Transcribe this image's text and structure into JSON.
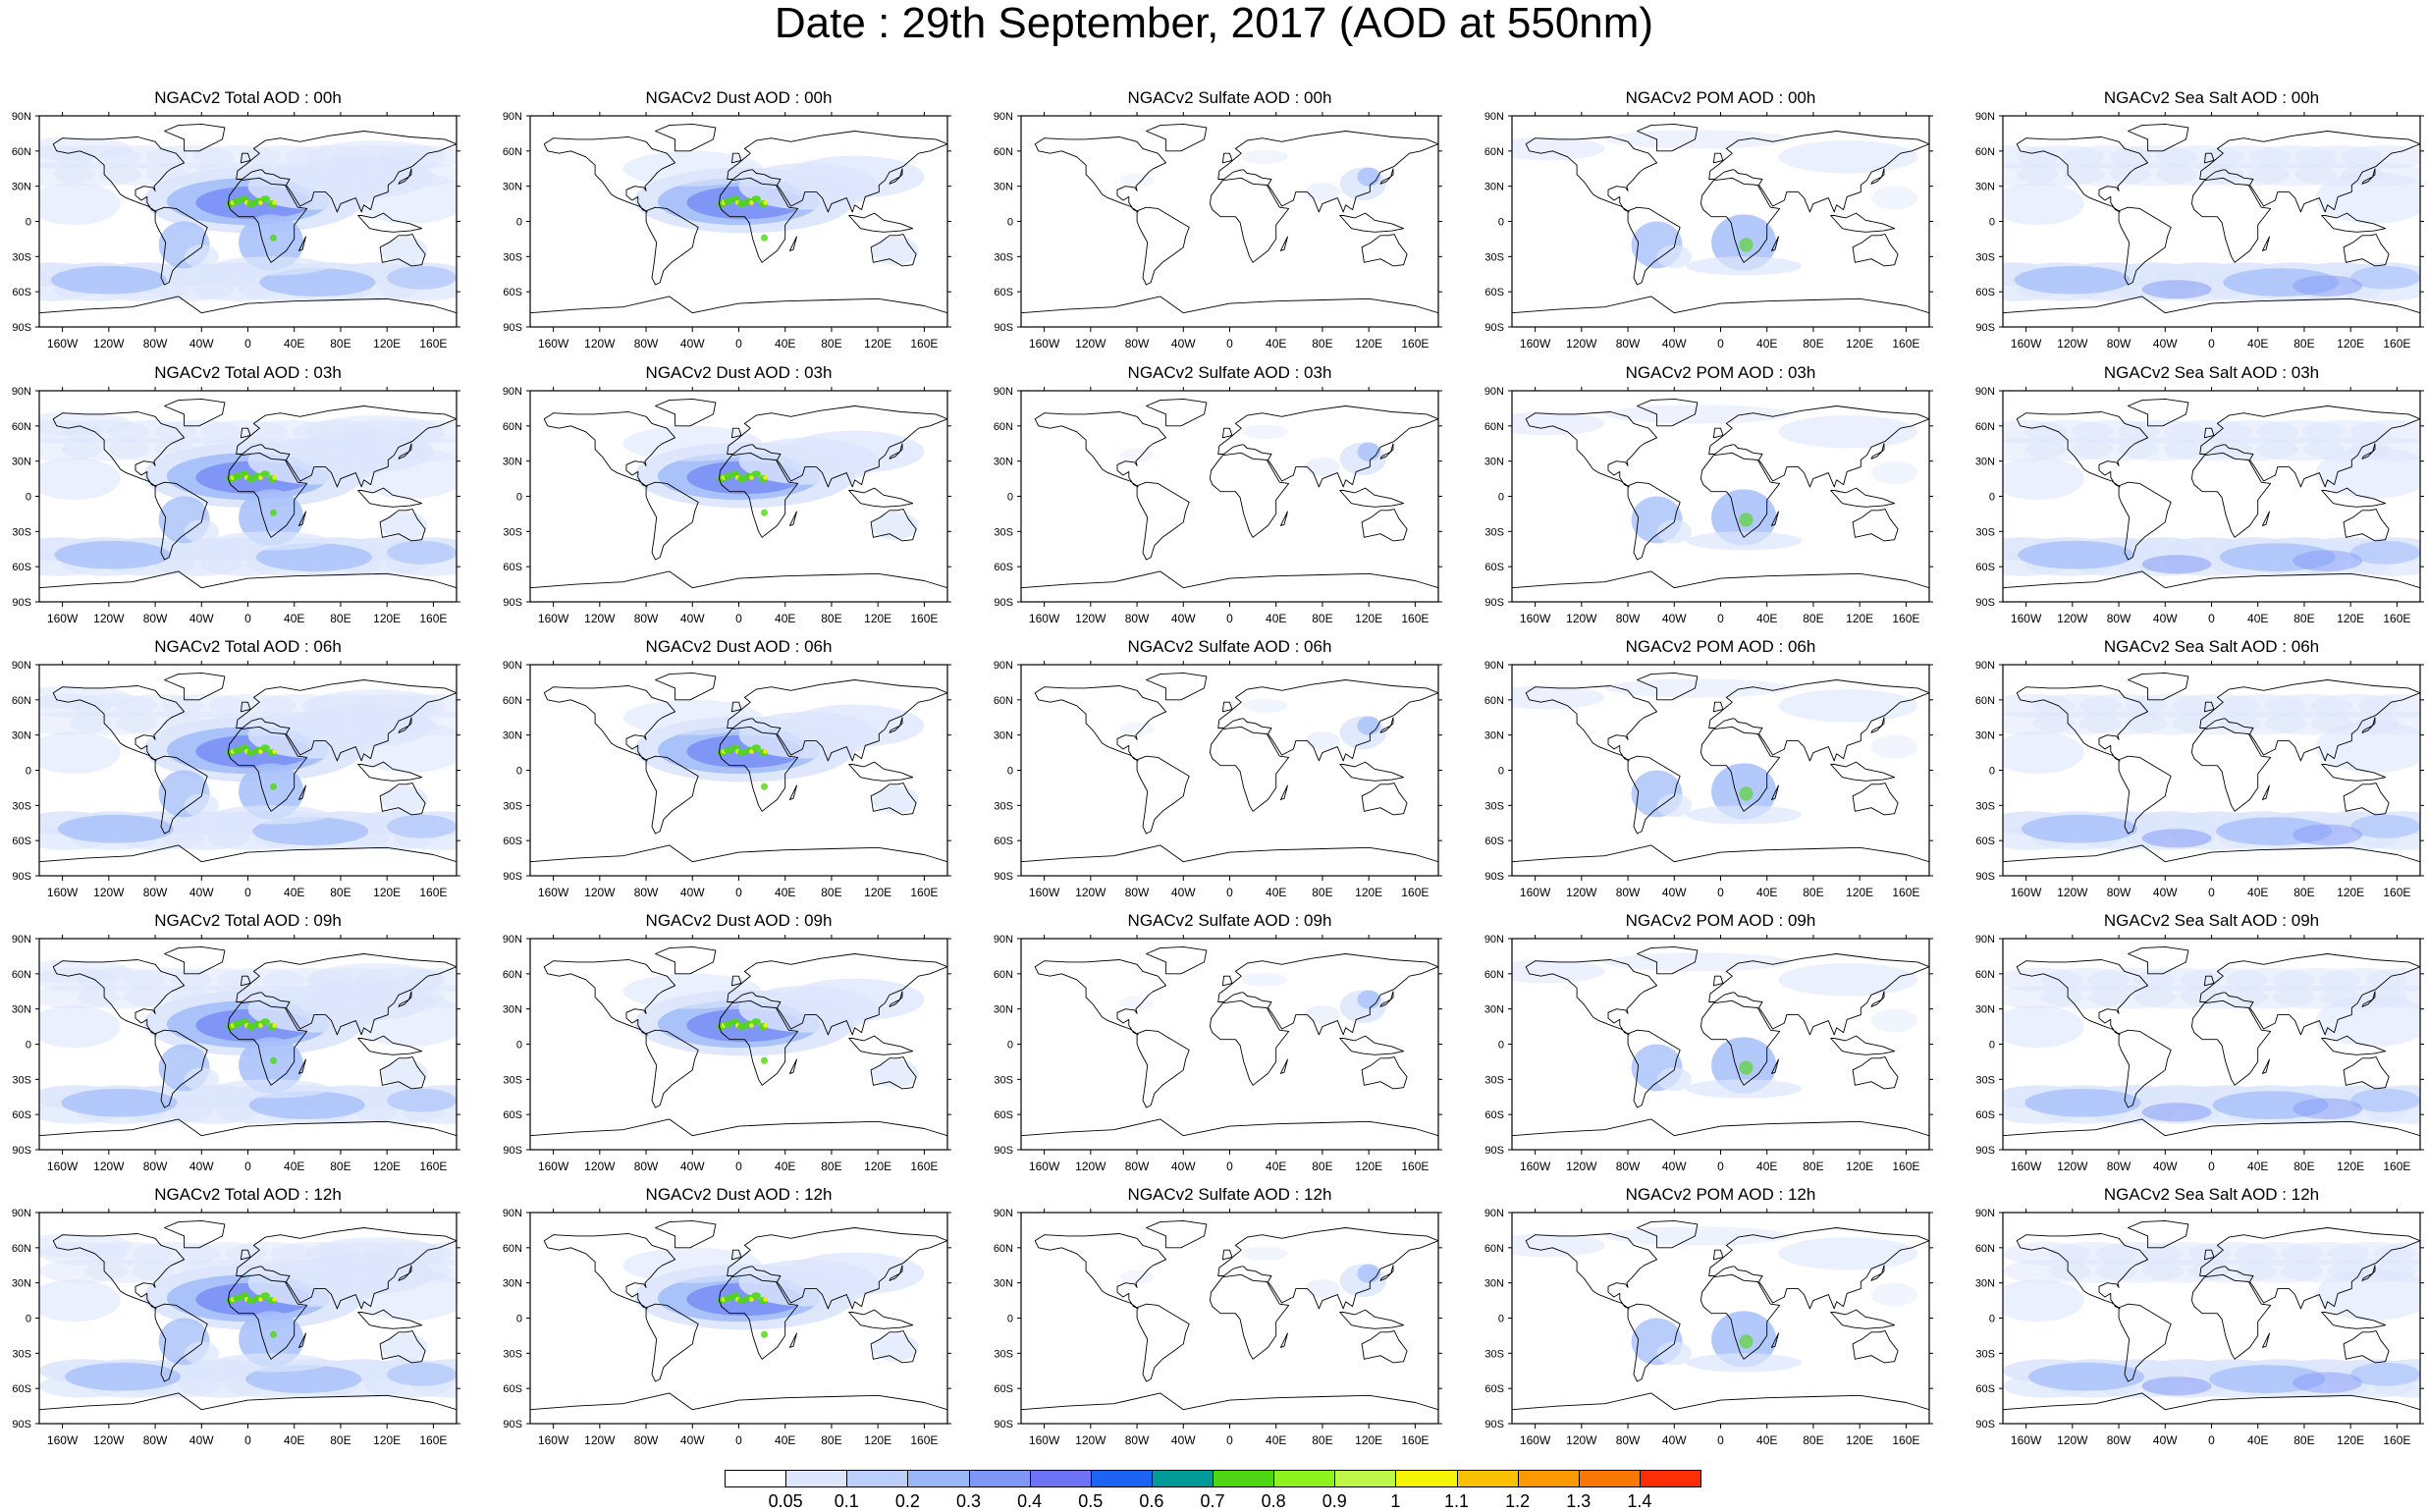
{
  "title": "Date : 29th September, 2017 (AOD at 550nm)",
  "lat_labels": [
    "90N",
    "60N",
    "30N",
    "0",
    "30S",
    "60S",
    "90S"
  ],
  "lon_labels": [
    "160W",
    "120W",
    "80W",
    "40W",
    "0",
    "40E",
    "80E",
    "120E",
    "160E"
  ],
  "panels": [
    [
      "NGACv2 Total AOD : 00h",
      "NGACv2 Dust AOD : 00h",
      "NGACv2 Sulfate AOD : 00h",
      "NGACv2 POM AOD : 00h",
      "NGACv2 Sea Salt AOD : 00h"
    ],
    [
      "NGACv2 Total AOD : 03h",
      "NGACv2 Dust AOD : 03h",
      "NGACv2 Sulfate AOD : 03h",
      "NGACv2 POM AOD : 03h",
      "NGACv2 Sea Salt AOD : 03h"
    ],
    [
      "NGACv2 Total AOD : 06h",
      "NGACv2 Dust AOD : 06h",
      "NGACv2 Sulfate AOD : 06h",
      "NGACv2 POM AOD : 06h",
      "NGACv2 Sea Salt AOD : 06h"
    ],
    [
      "NGACv2 Total AOD : 09h",
      "NGACv2 Dust AOD : 09h",
      "NGACv2 Sulfate AOD : 09h",
      "NGACv2 POM AOD : 09h",
      "NGACv2 Sea Salt  AOD : 09h"
    ],
    [
      "NGACv2 Total AOD :  12h",
      "NGACv2 Dust AOD : 12h",
      "NGACv2 Sulfate AOD : 12h",
      "NGACv2 POM  AOD : 12h",
      "NGACv2 Sea Salt AOD : 12h"
    ]
  ],
  "colorbar": {
    "levels": [
      "0.05",
      "0.1",
      "0.2",
      "0.3",
      "0.4",
      "0.5",
      "0.6",
      "0.7",
      "0.8",
      "0.9",
      "1",
      "1.1",
      "1.2",
      "1.3",
      "1.4"
    ],
    "colors": [
      "#ffffff",
      "#dde6fc",
      "#bccffb",
      "#9bb7f8",
      "#8097f7",
      "#6e73f6",
      "#1e64f3",
      "#009b98",
      "#4fd613",
      "#8ef21c",
      "#bef64a",
      "#f4f507",
      "#f9c100",
      "#fa9a00",
      "#fb7704",
      "#fb2e06"
    ]
  },
  "map_colors": {
    "land_outline": "#000000",
    "aod_light": "#dce6fc",
    "aod_mid": "#a7c0fa",
    "aod_dark": "#7d93f6",
    "dust_high": "#4fd613",
    "dust_peak": "#eef30a"
  }
}
